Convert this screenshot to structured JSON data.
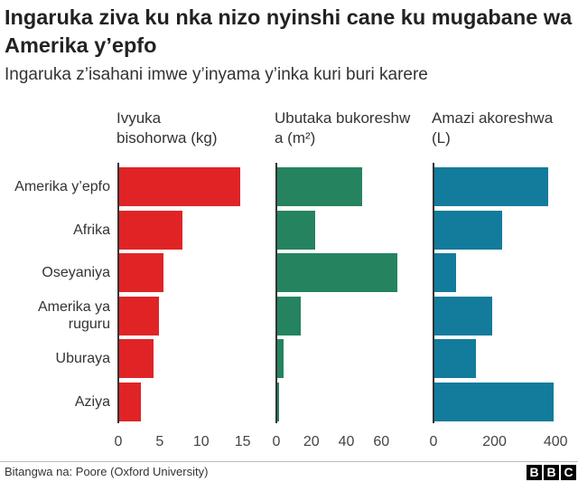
{
  "chart_data": {
    "type": "bar",
    "title": "Ingaruka ziva ku nka nizo nyinshi cane ku mugabane wa Amerika y’epfo",
    "subtitle": "Ingaruka z’isahani imwe y’inyama y’inka kuri buri karere",
    "categories": [
      "Amerika y’epfo",
      "Afrika",
      "Oseyaniya",
      "Amerika ya ruguru",
      "Uburaya",
      "Aziya"
    ],
    "series": [
      {
        "name": "Ivyuka bisohorwa (kg)",
        "color": "#e02426",
        "values": [
          14.7,
          7.7,
          5.4,
          4.9,
          4.3,
          2.7
        ],
        "xlim": [
          0,
          17
        ],
        "xticks": [
          0,
          5,
          10,
          15
        ]
      },
      {
        "name": "Ubutaka bukoreshwa (m²)",
        "color": "#25835f",
        "values": [
          49,
          22,
          69,
          14,
          4,
          1.5
        ],
        "xlim": [
          0,
          80
        ],
        "xticks": [
          0,
          20,
          40,
          60
        ]
      },
      {
        "name": "Amazi akoreshwa (L)",
        "color": "#137b9b",
        "values": [
          376,
          225,
          74,
          193,
          139,
          394
        ],
        "xlim": [
          0,
          420
        ],
        "xticks": [
          0,
          200,
          400
        ]
      }
    ],
    "source": "Bitangwa na: Poore (Oxford University)",
    "logo": [
      "B",
      "B",
      "C"
    ]
  }
}
